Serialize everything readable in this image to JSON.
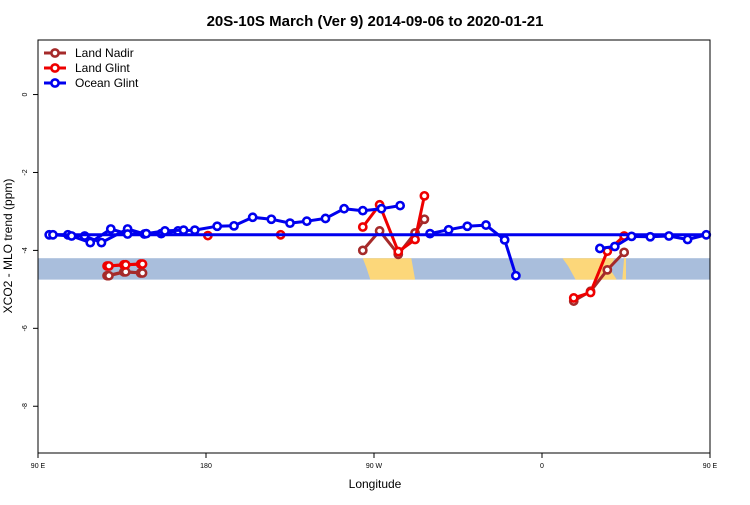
{
  "chart_data": {
    "type": "line",
    "title": "20S-10S March (Ver 9)   2014-09-06 to 2020-01-21",
    "xlabel": "Longitude",
    "ylabel": "XCO2 - MLO trend (ppm)",
    "xlim": [
      90,
      450
    ],
    "ylim": [
      -9.2,
      1.4
    ],
    "x_ticks": [
      {
        "value": 90,
        "label": "90 E"
      },
      {
        "value": 180,
        "label": "180"
      },
      {
        "value": 270,
        "label": "90 W"
      },
      {
        "value": 360,
        "label": "0"
      },
      {
        "value": 450,
        "label": "90 E"
      },
      {
        "value": 540,
        "label": "180"
      }
    ],
    "y_ticks": [
      {
        "value": 0,
        "label": "0"
      },
      {
        "value": -2,
        "label": "-2"
      },
      {
        "value": -4,
        "label": "-4"
      },
      {
        "value": -6,
        "label": "-6"
      },
      {
        "value": -8,
        "label": "-8"
      }
    ],
    "legend_position": "top-left",
    "grid": false,
    "background_band": {
      "y_min": -4.75,
      "y_max": -4.2,
      "ocean_color": "#a9bedc",
      "land_color": "#fcd77a"
    },
    "series": [
      {
        "name": "Land Nadir",
        "color": "#a52a2a",
        "segments": [
          [
            {
              "x": 127,
              "y": -4.65
            },
            {
              "x": 136,
              "y": -4.55
            },
            {
              "x": 145,
              "y": -4.58
            }
          ],
          [
            {
              "x": 264,
              "y": -4.0
            },
            {
              "x": 273,
              "y": -3.5
            },
            {
              "x": 283,
              "y": -4.1
            },
            {
              "x": 292,
              "y": -3.55
            },
            {
              "x": 297,
              "y": -3.2
            }
          ],
          [
            {
              "x": 377,
              "y": -5.3
            },
            {
              "x": 386,
              "y": -5.05
            },
            {
              "x": 395,
              "y": -4.5
            },
            {
              "x": 404,
              "y": -4.05
            }
          ],
          [
            {
              "x": 488,
              "y": -4.65
            },
            {
              "x": 497,
              "y": -4.55
            },
            {
              "x": 506,
              "y": -4.58
            }
          ]
        ]
      },
      {
        "name": "Land Glint",
        "color": "#ee0000",
        "segments": [
          [
            {
              "x": 127,
              "y": -4.4
            },
            {
              "x": 136,
              "y": -4.37
            },
            {
              "x": 145,
              "y": -4.35
            }
          ],
          [
            {
              "x": 181,
              "y": -3.62
            }
          ],
          [
            {
              "x": 220,
              "y": -3.6
            }
          ],
          [
            {
              "x": 264,
              "y": -3.4
            },
            {
              "x": 273,
              "y": -2.83
            },
            {
              "x": 283,
              "y": -4.03
            },
            {
              "x": 292,
              "y": -3.72
            },
            {
              "x": 297,
              "y": -2.6
            }
          ],
          [
            {
              "x": 377,
              "y": -5.22
            },
            {
              "x": 386,
              "y": -5.08
            },
            {
              "x": 395,
              "y": -4.02
            },
            {
              "x": 404,
              "y": -3.63
            }
          ],
          [
            {
              "x": 488,
              "y": -4.4
            },
            {
              "x": 497,
              "y": -4.37
            },
            {
              "x": 506,
              "y": -4.35
            }
          ]
        ]
      },
      {
        "name": "Ocean Glint",
        "color": "#0000ee",
        "segments": [
          [
            {
              "x": 96,
              "y": -3.6
            },
            {
              "x": 106,
              "y": -3.6
            },
            {
              "x": 115,
              "y": -3.63
            },
            {
              "x": 124,
              "y": -3.8
            },
            {
              "x": 138,
              "y": -3.45
            },
            {
              "x": 147,
              "y": -3.58
            },
            {
              "x": 156,
              "y": -3.57
            },
            {
              "x": 165,
              "y": -3.5
            },
            {
              "x": 174,
              "y": -3.48
            },
            {
              "x": 186,
              "y": -3.38
            },
            {
              "x": 195,
              "y": -3.37
            },
            {
              "x": 205,
              "y": -3.15
            },
            {
              "x": 215,
              "y": -3.2
            },
            {
              "x": 225,
              "y": -3.3
            },
            {
              "x": 234,
              "y": -3.25
            },
            {
              "x": 244,
              "y": -3.18
            },
            {
              "x": 254,
              "y": -2.93
            },
            {
              "x": 264,
              "y": -2.98
            },
            {
              "x": 274,
              "y": -2.93
            },
            {
              "x": 284,
              "y": -2.85
            }
          ],
          [
            {
              "x": 300,
              "y": -3.57
            },
            {
              "x": 310,
              "y": -3.47
            },
            {
              "x": 320,
              "y": -3.38
            },
            {
              "x": 330,
              "y": -3.35
            },
            {
              "x": 340,
              "y": -3.73
            },
            {
              "x": 346,
              "y": -4.65
            }
          ],
          [
            {
              "x": 391,
              "y": -3.95
            },
            {
              "x": 399,
              "y": -3.9
            },
            {
              "x": 408,
              "y": -3.64
            },
            {
              "x": 418,
              "y": -3.65
            },
            {
              "x": 428,
              "y": -3.63
            },
            {
              "x": 438,
              "y": -3.72
            },
            {
              "x": 448,
              "y": -3.6
            },
            {
              "x": 458,
              "y": -3.6
            },
            {
              "x": 468,
              "y": -3.63
            },
            {
              "x": 478,
              "y": -3.8
            },
            {
              "x": 489,
              "y": -3.45
            },
            {
              "x": 498,
              "y": -3.58
            },
            {
              "x": 508,
              "y": -3.57
            },
            {
              "x": 518,
              "y": -3.5
            },
            {
              "x": 528,
              "y": -3.48
            }
          ]
        ]
      }
    ]
  }
}
